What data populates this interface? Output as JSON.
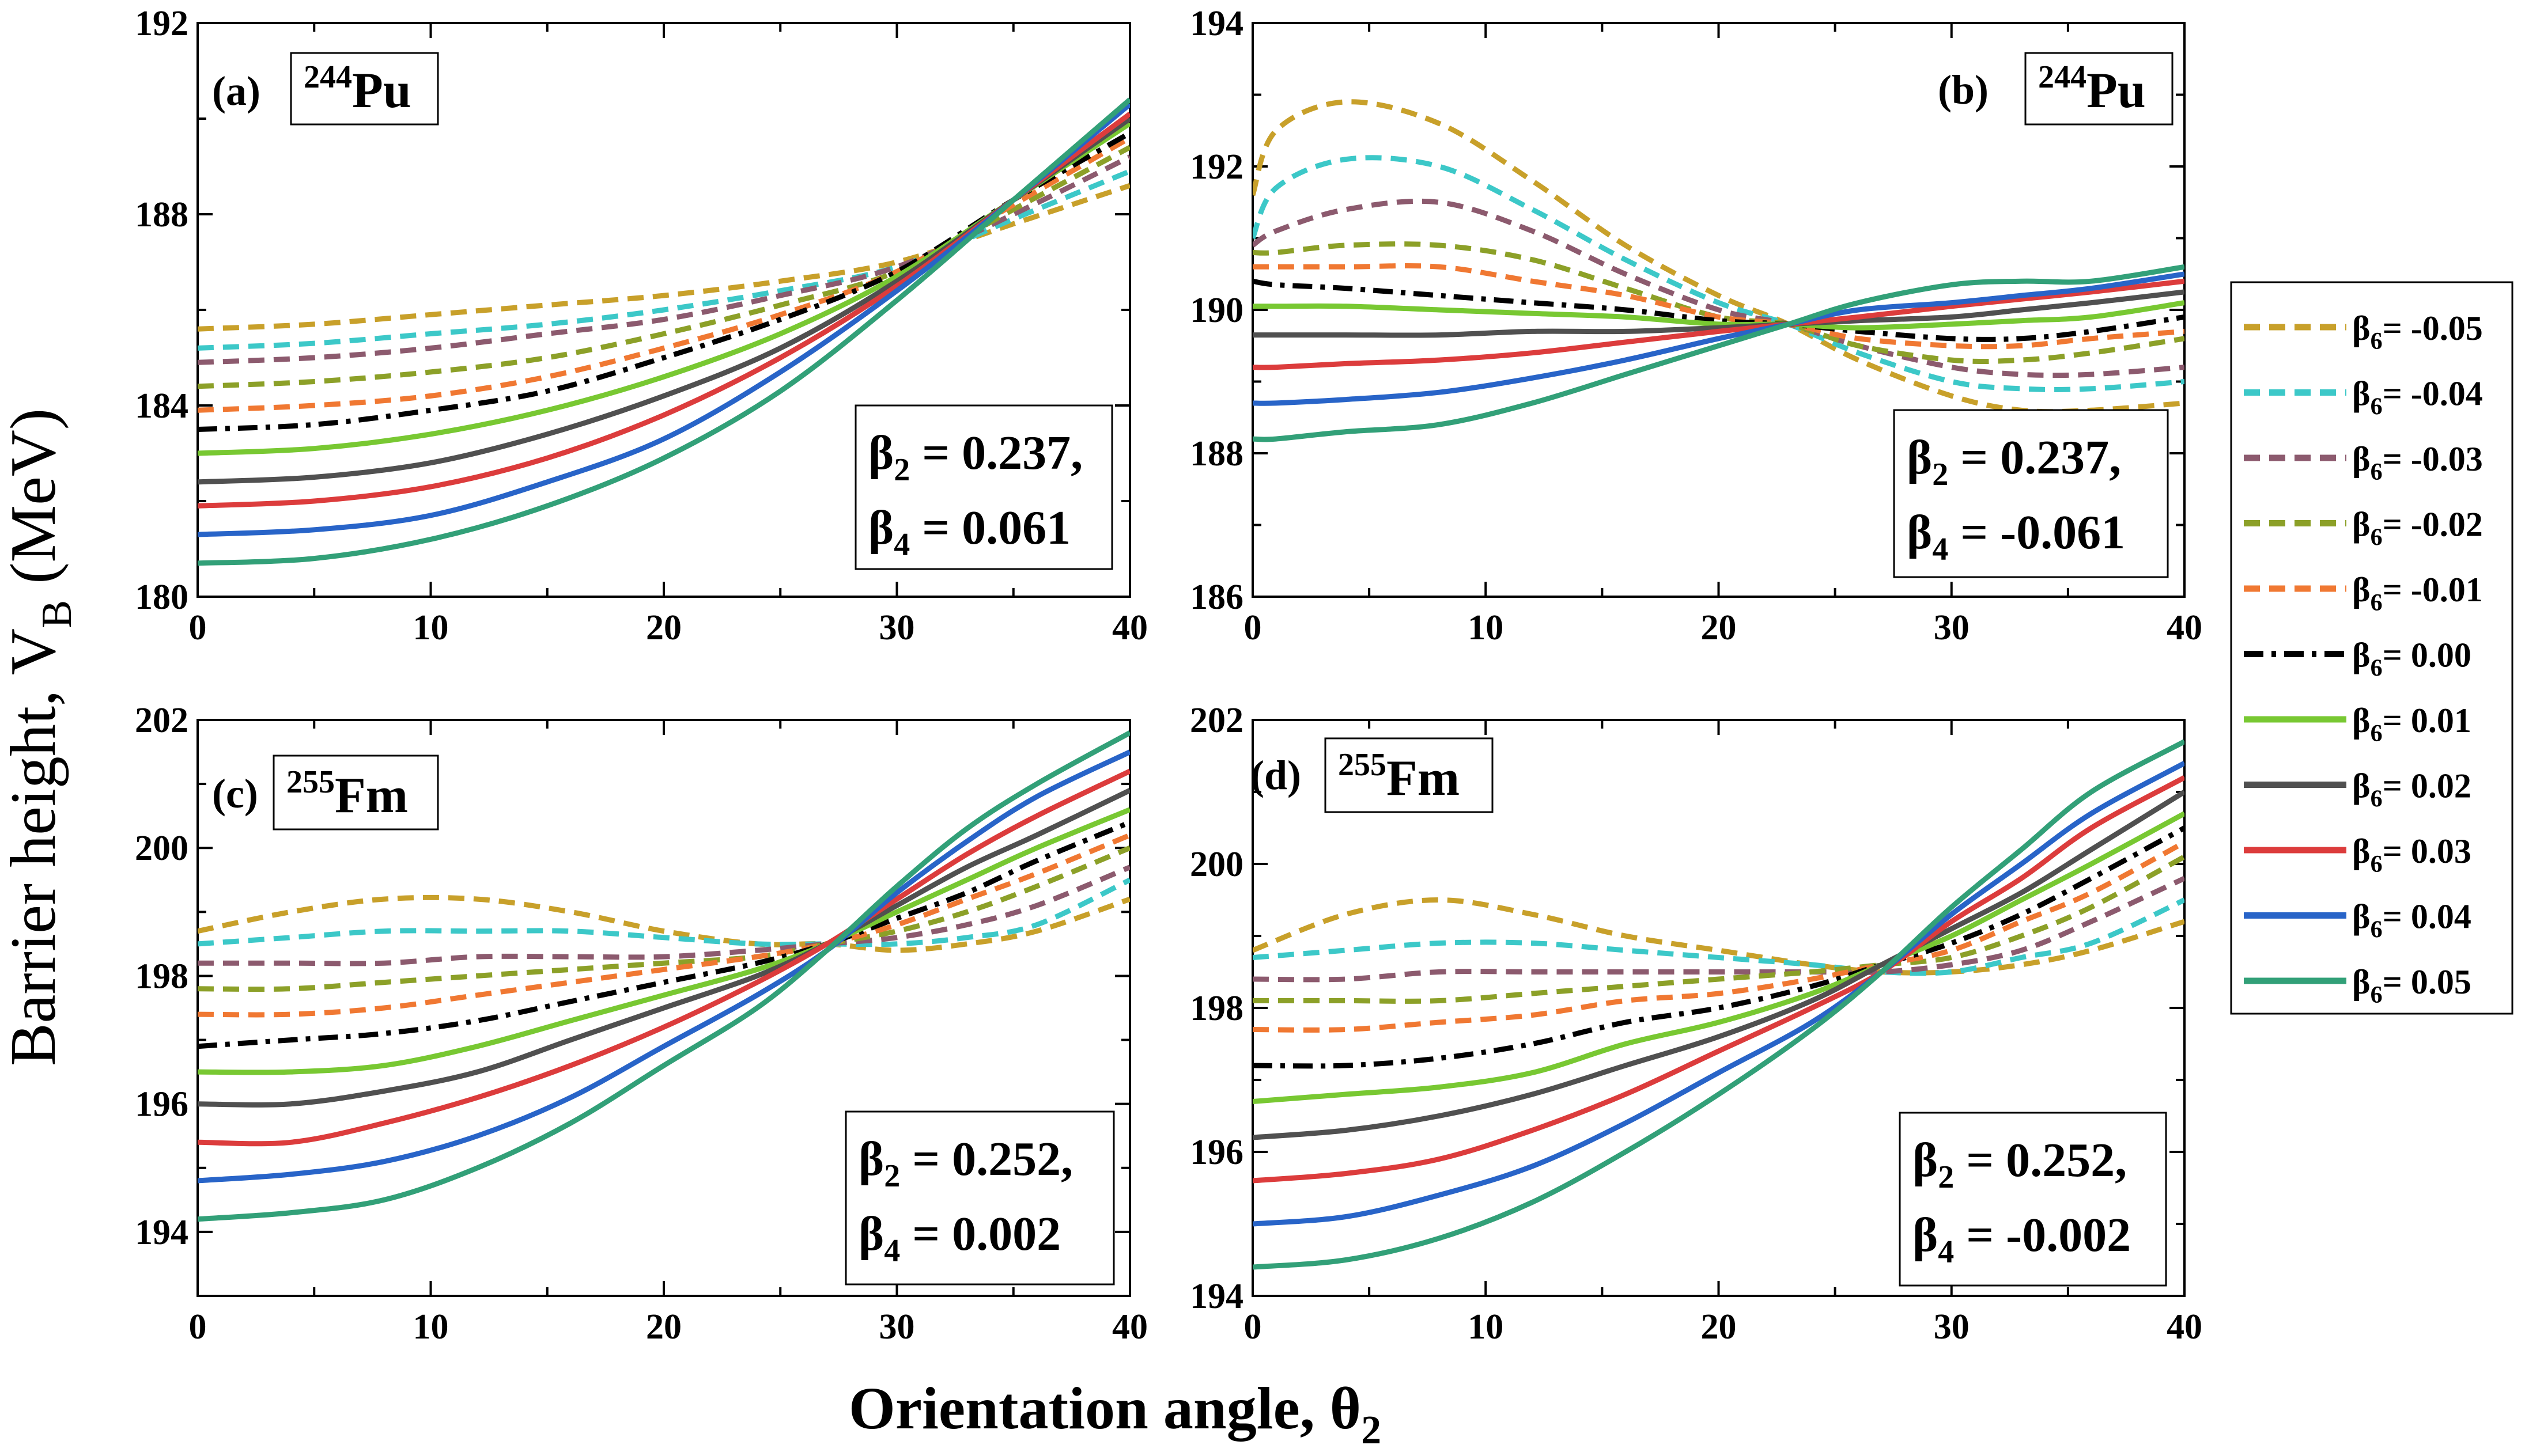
{
  "figure": {
    "ylabel_main": "Barrier height, V",
    "ylabel_sub": "B",
    "ylabel_unit": " (MeV)",
    "xlabel_main": "Orientation angle, θ",
    "xlabel_sub": "2"
  },
  "legend": {
    "items": [
      {
        "prefix": "β",
        "sub": "6",
        "value": "= -0.05",
        "color": "#c8a02a",
        "style": "dash"
      },
      {
        "prefix": "β",
        "sub": "6",
        "value": "= -0.04",
        "color": "#3cc8c8",
        "style": "dash"
      },
      {
        "prefix": "β",
        "sub": "6",
        "value": "= -0.03",
        "color": "#8c5a6e",
        "style": "dash"
      },
      {
        "prefix": "β",
        "sub": "6",
        "value": "= -0.02",
        "color": "#8ca028",
        "style": "dash"
      },
      {
        "prefix": "β",
        "sub": "6",
        "value": "= -0.01",
        "color": "#f07832",
        "style": "dash"
      },
      {
        "prefix": "β",
        "sub": "6",
        "value": "= 0.00",
        "color": "#000000",
        "style": "dashdot"
      },
      {
        "prefix": "β",
        "sub": "6",
        "value": "= 0.01",
        "color": "#78c832",
        "style": "solid"
      },
      {
        "prefix": "β",
        "sub": "6",
        "value": "= 0.02",
        "color": "#505050",
        "style": "solid"
      },
      {
        "prefix": "β",
        "sub": "6",
        "value": "= 0.03",
        "color": "#dc3c3c",
        "style": "solid"
      },
      {
        "prefix": "β",
        "sub": "6",
        "value": "= 0.04",
        "color": "#2864c8",
        "style": "solid"
      },
      {
        "prefix": "β",
        "sub": "6",
        "value": "= 0.05",
        "color": "#32a078",
        "style": "solid"
      }
    ]
  },
  "chart_data": [
    {
      "type": "line",
      "panel_label": "(a)",
      "nucleus_mass": "244",
      "nucleus_symbol": "Pu",
      "beta2_text": "= 0.237,",
      "beta4_text": "= 0.061",
      "xlim": [
        0,
        40
      ],
      "ylim": [
        180,
        192
      ],
      "xticks": [
        "0",
        "10",
        "20",
        "30",
        "40"
      ],
      "yticks": [
        "180",
        "184",
        "188",
        "192"
      ],
      "x": [
        0,
        5,
        10,
        15,
        20,
        25,
        30,
        35,
        40
      ],
      "series": [
        {
          "values": [
            185.6,
            185.7,
            185.9,
            186.1,
            186.3,
            186.6,
            187.0,
            187.8,
            188.6
          ]
        },
        {
          "values": [
            185.2,
            185.3,
            185.5,
            185.7,
            186.0,
            186.4,
            186.9,
            187.9,
            188.9
          ]
        },
        {
          "values": [
            184.9,
            185.0,
            185.2,
            185.5,
            185.8,
            186.3,
            186.9,
            188.0,
            189.2
          ]
        },
        {
          "values": [
            184.4,
            184.5,
            184.7,
            185.0,
            185.5,
            186.1,
            186.8,
            188.1,
            189.4
          ]
        },
        {
          "values": [
            183.9,
            184.0,
            184.2,
            184.6,
            185.2,
            185.9,
            186.8,
            188.2,
            189.6
          ]
        },
        {
          "values": [
            183.5,
            183.6,
            183.9,
            184.3,
            185.0,
            185.8,
            186.8,
            188.3,
            189.7
          ]
        },
        {
          "values": [
            183.0,
            183.1,
            183.4,
            183.9,
            184.6,
            185.5,
            186.7,
            188.3,
            189.9
          ]
        },
        {
          "values": [
            182.4,
            182.5,
            182.8,
            183.4,
            184.2,
            185.2,
            186.6,
            188.3,
            190.0
          ]
        },
        {
          "values": [
            181.9,
            182.0,
            182.3,
            182.9,
            183.8,
            185.0,
            186.5,
            188.3,
            190.1
          ]
        },
        {
          "values": [
            181.3,
            181.4,
            181.7,
            182.4,
            183.3,
            184.7,
            186.4,
            188.3,
            190.3
          ]
        },
        {
          "values": [
            180.7,
            180.8,
            181.2,
            181.9,
            182.9,
            184.3,
            186.2,
            188.3,
            190.4
          ]
        }
      ]
    },
    {
      "type": "line",
      "panel_label": "(b)",
      "nucleus_mass": "244",
      "nucleus_symbol": "Pu",
      "beta2_text": "= 0.237,",
      "beta4_text": "= -0.061",
      "xlim": [
        0,
        40
      ],
      "ylim": [
        186,
        194
      ],
      "xticks": [
        "0",
        "10",
        "20",
        "30",
        "40"
      ],
      "yticks": [
        "186",
        "188",
        "190",
        "192",
        "194"
      ],
      "x": [
        0,
        1,
        4,
        8,
        12,
        16,
        20,
        23,
        26,
        30,
        33,
        36,
        40
      ],
      "series": [
        {
          "values": [
            191.6,
            192.5,
            192.9,
            192.6,
            191.8,
            190.9,
            190.2,
            189.8,
            189.3,
            188.8,
            188.6,
            188.6,
            188.7
          ]
        },
        {
          "values": [
            191.0,
            191.7,
            192.1,
            192.0,
            191.4,
            190.7,
            190.1,
            189.8,
            189.4,
            189.0,
            188.9,
            188.9,
            189.0
          ]
        },
        {
          "values": [
            190.9,
            191.1,
            191.4,
            191.5,
            191.1,
            190.5,
            190.0,
            189.8,
            189.5,
            189.2,
            189.1,
            189.1,
            189.2
          ]
        },
        {
          "values": [
            190.8,
            190.8,
            190.9,
            190.9,
            190.7,
            190.3,
            189.9,
            189.8,
            189.5,
            189.3,
            189.3,
            189.4,
            189.6
          ]
        },
        {
          "values": [
            190.6,
            190.6,
            190.6,
            190.6,
            190.4,
            190.2,
            189.9,
            189.8,
            189.6,
            189.5,
            189.5,
            189.6,
            189.7
          ]
        },
        {
          "values": [
            190.4,
            190.35,
            190.3,
            190.2,
            190.1,
            190.0,
            189.85,
            189.8,
            189.7,
            189.6,
            189.6,
            189.7,
            189.9
          ]
        },
        {
          "values": [
            190.05,
            190.05,
            190.05,
            190.0,
            189.95,
            189.9,
            189.8,
            189.8,
            189.75,
            189.8,
            189.85,
            189.9,
            190.1
          ]
        },
        {
          "values": [
            189.65,
            189.65,
            189.65,
            189.65,
            189.7,
            189.7,
            189.75,
            189.8,
            189.85,
            189.9,
            190.0,
            190.1,
            190.25
          ]
        },
        {
          "values": [
            189.2,
            189.2,
            189.25,
            189.3,
            189.4,
            189.55,
            189.7,
            189.8,
            189.9,
            190.05,
            190.15,
            190.25,
            190.4
          ]
        },
        {
          "values": [
            188.7,
            188.7,
            188.75,
            188.85,
            189.05,
            189.3,
            189.6,
            189.8,
            190.0,
            190.1,
            190.2,
            190.3,
            190.5
          ]
        },
        {
          "values": [
            188.2,
            188.2,
            188.3,
            188.4,
            188.7,
            189.1,
            189.5,
            189.8,
            190.1,
            190.35,
            190.4,
            190.4,
            190.6
          ]
        }
      ]
    },
    {
      "type": "line",
      "panel_label": "(c)",
      "nucleus_mass": "255",
      "nucleus_symbol": "Fm",
      "beta2_text": "= 0.252,",
      "beta4_text": "= 0.002",
      "xlim": [
        0,
        40
      ],
      "ylim": [
        193,
        202
      ],
      "xticks": [
        "0",
        "10",
        "20",
        "30",
        "40"
      ],
      "yticks": [
        "194",
        "196",
        "198",
        "200",
        "202"
      ],
      "x": [
        0,
        4,
        8,
        12,
        16,
        20,
        24,
        27,
        30,
        33,
        36,
        40
      ],
      "series": [
        {
          "values": [
            198.7,
            199.0,
            199.2,
            199.2,
            199.0,
            198.7,
            198.5,
            198.5,
            198.4,
            198.5,
            198.7,
            199.2
          ]
        },
        {
          "values": [
            198.5,
            198.6,
            198.7,
            198.7,
            198.7,
            198.6,
            198.5,
            198.5,
            198.5,
            198.6,
            198.8,
            199.5
          ]
        },
        {
          "values": [
            198.2,
            198.2,
            198.2,
            198.3,
            198.3,
            198.3,
            198.4,
            198.5,
            198.6,
            198.8,
            199.1,
            199.7
          ]
        },
        {
          "values": [
            197.8,
            197.8,
            197.9,
            198.0,
            198.1,
            198.2,
            198.3,
            198.5,
            198.7,
            199.0,
            199.4,
            200.0
          ]
        },
        {
          "values": [
            197.4,
            197.4,
            197.5,
            197.7,
            197.9,
            198.1,
            198.3,
            198.5,
            198.8,
            199.2,
            199.6,
            200.2
          ]
        },
        {
          "values": [
            196.9,
            197.0,
            197.1,
            197.3,
            197.6,
            197.9,
            198.2,
            198.5,
            198.9,
            199.3,
            199.8,
            200.4
          ]
        },
        {
          "values": [
            196.5,
            196.5,
            196.6,
            196.9,
            197.3,
            197.7,
            198.1,
            198.5,
            199.0,
            199.5,
            200.0,
            200.6
          ]
        },
        {
          "values": [
            196.0,
            196.0,
            196.2,
            196.5,
            197.0,
            197.5,
            198.0,
            198.5,
            199.1,
            199.7,
            200.2,
            200.9
          ]
        },
        {
          "values": [
            195.4,
            195.4,
            195.7,
            196.1,
            196.6,
            197.2,
            197.9,
            198.5,
            199.2,
            199.9,
            200.5,
            201.2
          ]
        },
        {
          "values": [
            194.8,
            194.9,
            195.1,
            195.5,
            196.1,
            196.9,
            197.7,
            198.4,
            199.3,
            200.1,
            200.8,
            201.5
          ]
        },
        {
          "values": [
            194.2,
            194.3,
            194.5,
            195.0,
            195.7,
            196.6,
            197.5,
            198.4,
            199.4,
            200.3,
            201.0,
            201.8
          ]
        }
      ]
    },
    {
      "type": "line",
      "panel_label": "(d)",
      "nucleus_mass": "255",
      "nucleus_symbol": "Fm",
      "beta2_text": "= 0.252,",
      "beta4_text": "= -0.002",
      "xlim": [
        0,
        40
      ],
      "ylim": [
        194,
        202
      ],
      "xticks": [
        "0",
        "10",
        "20",
        "30",
        "40"
      ],
      "yticks": [
        "194",
        "196",
        "198",
        "200",
        "202"
      ],
      "x": [
        0,
        4,
        8,
        12,
        16,
        20,
        24,
        27,
        30,
        33,
        36,
        40
      ],
      "series": [
        {
          "values": [
            198.8,
            199.3,
            199.5,
            199.3,
            199.0,
            198.8,
            198.6,
            198.5,
            198.5,
            198.6,
            198.8,
            199.2
          ]
        },
        {
          "values": [
            198.7,
            198.8,
            198.9,
            198.9,
            198.8,
            198.7,
            198.6,
            198.5,
            198.5,
            198.7,
            198.9,
            199.5
          ]
        },
        {
          "values": [
            198.4,
            198.4,
            198.5,
            198.5,
            198.5,
            198.5,
            198.5,
            198.5,
            198.6,
            198.8,
            199.2,
            199.8
          ]
        },
        {
          "values": [
            198.1,
            198.1,
            198.1,
            198.2,
            198.3,
            198.4,
            198.5,
            198.6,
            198.7,
            199.0,
            199.4,
            200.1
          ]
        },
        {
          "values": [
            197.7,
            197.7,
            197.8,
            197.9,
            198.1,
            198.2,
            198.4,
            198.6,
            198.8,
            199.2,
            199.6,
            200.3
          ]
        },
        {
          "values": [
            197.2,
            197.2,
            197.3,
            197.5,
            197.8,
            198.0,
            198.3,
            198.6,
            198.9,
            199.3,
            199.8,
            200.5
          ]
        },
        {
          "values": [
            196.7,
            196.8,
            196.9,
            197.1,
            197.5,
            197.8,
            198.2,
            198.6,
            199.0,
            199.5,
            200.0,
            200.7
          ]
        },
        {
          "values": [
            196.2,
            196.3,
            196.5,
            196.8,
            197.2,
            197.6,
            198.1,
            198.6,
            199.1,
            199.6,
            200.2,
            201.0
          ]
        },
        {
          "values": [
            195.6,
            195.7,
            195.9,
            196.3,
            196.8,
            197.4,
            198.0,
            198.5,
            199.2,
            199.8,
            200.5,
            201.2
          ]
        },
        {
          "values": [
            195.0,
            195.1,
            195.4,
            195.8,
            196.4,
            197.1,
            197.8,
            198.5,
            199.3,
            200.0,
            200.7,
            201.4
          ]
        },
        {
          "values": [
            194.4,
            194.5,
            194.8,
            195.3,
            196.0,
            196.8,
            197.7,
            198.5,
            199.4,
            200.2,
            201.0,
            201.7
          ]
        }
      ]
    }
  ]
}
